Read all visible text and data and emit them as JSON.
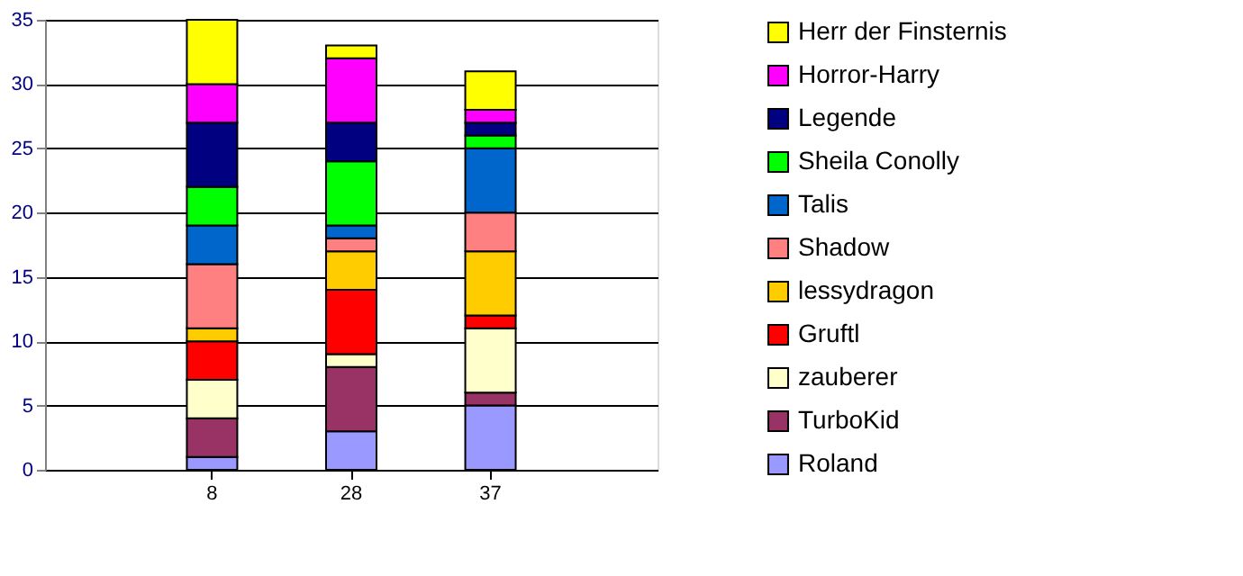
{
  "chart_data": {
    "type": "bar",
    "stacked": true,
    "categories": [
      "8",
      "28",
      "37"
    ],
    "series": [
      {
        "name": "Roland",
        "color": "#9999ff",
        "values": [
          1,
          3,
          5
        ]
      },
      {
        "name": "TurboKid",
        "color": "#993366",
        "values": [
          3,
          5,
          1
        ]
      },
      {
        "name": "zauberer",
        "color": "#ffffcc",
        "values": [
          3,
          1,
          5
        ]
      },
      {
        "name": "Gruftl",
        "color": "#ff0000",
        "values": [
          3,
          5,
          1
        ]
      },
      {
        "name": "lessydragon",
        "color": "#ffcc00",
        "values": [
          1,
          3,
          5
        ]
      },
      {
        "name": "Shadow",
        "color": "#ff8080",
        "values": [
          5,
          1,
          3
        ]
      },
      {
        "name": "Talis",
        "color": "#0066cc",
        "values": [
          3,
          1,
          5
        ]
      },
      {
        "name": "Sheila Conolly",
        "color": "#00ff00",
        "values": [
          3,
          5,
          1
        ]
      },
      {
        "name": "Legende",
        "color": "#000080",
        "values": [
          5,
          3,
          1
        ]
      },
      {
        "name": "Horror-Harry",
        "color": "#ff00ff",
        "values": [
          3,
          5,
          1
        ]
      },
      {
        "name": "Herr der Finsternis",
        "color": "#ffff00",
        "values": [
          5,
          1,
          3
        ]
      }
    ],
    "ylim": [
      0,
      35
    ],
    "yticks": [
      0,
      5,
      10,
      15,
      20,
      25,
      30,
      35
    ],
    "grid": "y",
    "legend": "right"
  }
}
